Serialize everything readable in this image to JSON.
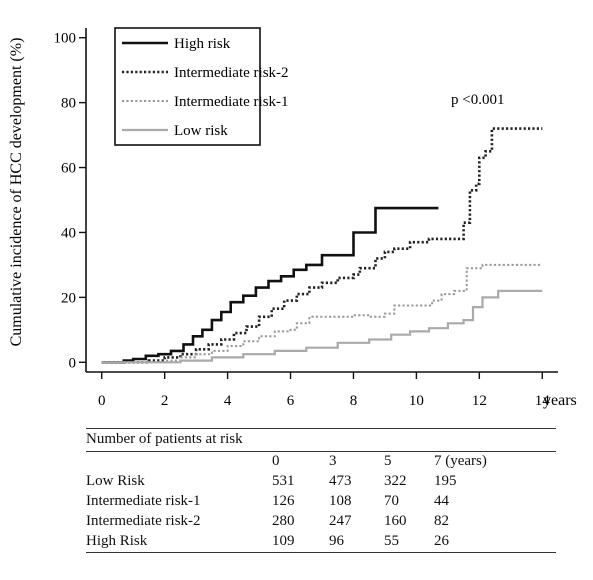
{
  "chart_data": {
    "type": "line",
    "title": "",
    "xlabel": "years",
    "ylabel": "Cumulative incidence of HCC development (%)",
    "xlim": [
      -0.5,
      14.5
    ],
    "ylim": [
      -3,
      103
    ],
    "x_ticks": [
      0,
      2,
      4,
      6,
      8,
      10,
      12,
      14
    ],
    "y_ticks": [
      0,
      20,
      40,
      60,
      80,
      100
    ],
    "annotation": "p <0.001",
    "legend_position": "top-left",
    "series": [
      {
        "name": "High risk",
        "style": "solid",
        "color": "#111111",
        "points": [
          [
            0,
            0
          ],
          [
            0.7,
            0.5
          ],
          [
            1.0,
            1.0
          ],
          [
            1.4,
            2.0
          ],
          [
            1.8,
            2.5
          ],
          [
            2.2,
            3.5
          ],
          [
            2.6,
            5.5
          ],
          [
            2.9,
            8
          ],
          [
            3.2,
            10
          ],
          [
            3.5,
            13
          ],
          [
            3.8,
            15.5
          ],
          [
            4.1,
            18.5
          ],
          [
            4.5,
            20.5
          ],
          [
            4.9,
            23
          ],
          [
            5.3,
            25
          ],
          [
            5.7,
            26.5
          ],
          [
            6.1,
            28.5
          ],
          [
            6.5,
            30
          ],
          [
            7.0,
            33
          ],
          [
            7.8,
            33
          ],
          [
            8.0,
            40
          ],
          [
            8.6,
            40
          ],
          [
            8.7,
            47.5
          ],
          [
            10.7,
            47.5
          ]
        ]
      },
      {
        "name": "Intermediate risk-2",
        "style": "dotted",
        "color": "#222222",
        "points": [
          [
            0,
            0
          ],
          [
            1.5,
            0.5
          ],
          [
            2.0,
            1.5
          ],
          [
            2.5,
            2.5
          ],
          [
            3.0,
            4
          ],
          [
            3.4,
            5.5
          ],
          [
            3.8,
            7
          ],
          [
            4.2,
            9
          ],
          [
            4.6,
            11
          ],
          [
            5.0,
            14
          ],
          [
            5.4,
            16.5
          ],
          [
            5.8,
            19
          ],
          [
            6.2,
            21
          ],
          [
            6.6,
            23
          ],
          [
            7.0,
            24.5
          ],
          [
            7.5,
            26
          ],
          [
            8.0,
            27
          ],
          [
            8.2,
            29
          ],
          [
            8.7,
            32
          ],
          [
            9.0,
            34
          ],
          [
            9.3,
            35
          ],
          [
            9.8,
            37
          ],
          [
            10.4,
            38
          ],
          [
            11.3,
            38
          ],
          [
            11.5,
            43
          ],
          [
            11.7,
            53
          ],
          [
            11.9,
            55
          ],
          [
            12.0,
            63
          ],
          [
            12.2,
            65
          ],
          [
            12.4,
            72
          ],
          [
            14.0,
            72
          ]
        ]
      },
      {
        "name": "Intermediate risk-1",
        "style": "dotted",
        "color": "#999999",
        "points": [
          [
            0,
            0
          ],
          [
            2.0,
            0.5
          ],
          [
            2.5,
            1.5
          ],
          [
            3.0,
            2.5
          ],
          [
            3.5,
            3.5
          ],
          [
            4.0,
            5
          ],
          [
            4.5,
            6.5
          ],
          [
            5.0,
            8
          ],
          [
            5.5,
            9.5
          ],
          [
            6.0,
            10
          ],
          [
            6.2,
            12
          ],
          [
            6.6,
            14
          ],
          [
            7.8,
            14
          ],
          [
            8.0,
            14.5
          ],
          [
            8.5,
            14
          ],
          [
            9.0,
            15
          ],
          [
            9.3,
            17.5
          ],
          [
            10.2,
            17.5
          ],
          [
            10.5,
            19
          ],
          [
            10.8,
            21
          ],
          [
            11.2,
            22
          ],
          [
            11.6,
            29
          ],
          [
            12.1,
            30
          ],
          [
            14.0,
            30
          ]
        ]
      },
      {
        "name": "Low risk",
        "style": "solid",
        "color": "#aaaaaa",
        "points": [
          [
            0,
            0
          ],
          [
            2.5,
            0.5
          ],
          [
            3.5,
            1.5
          ],
          [
            4.5,
            2.5
          ],
          [
            5.5,
            3.5
          ],
          [
            6.5,
            4.5
          ],
          [
            7.5,
            6
          ],
          [
            8.5,
            7
          ],
          [
            9.2,
            8.5
          ],
          [
            9.8,
            9.5
          ],
          [
            10.4,
            10.5
          ],
          [
            11.0,
            12
          ],
          [
            11.5,
            13
          ],
          [
            11.8,
            17
          ],
          [
            12.1,
            20
          ],
          [
            12.6,
            22
          ],
          [
            14.0,
            22
          ]
        ]
      }
    ]
  },
  "risk_table": {
    "title": "Number of patients at risk",
    "headers": [
      "0",
      "3",
      "5",
      "7 (years)"
    ],
    "rows": [
      {
        "label": "Low Risk",
        "values": [
          "531",
          "473",
          "322",
          "195"
        ]
      },
      {
        "label": "Intermediate risk-1",
        "values": [
          "126",
          "108",
          "70",
          "44"
        ]
      },
      {
        "label": "Intermediate risk-2",
        "values": [
          "280",
          "247",
          "160",
          "82"
        ]
      },
      {
        "label": "High Risk",
        "values": [
          "109",
          "96",
          "55",
          "26"
        ]
      }
    ]
  }
}
